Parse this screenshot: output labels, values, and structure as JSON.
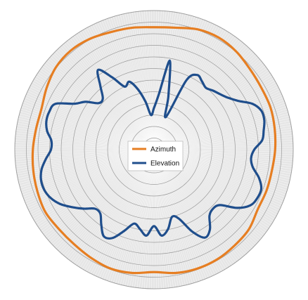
{
  "chart_data": {
    "type": "polar-line",
    "title": "",
    "radial_grid": true,
    "legend": {
      "position": "center",
      "entries": [
        {
          "name": "Azimuth",
          "color": "#e67e22"
        },
        {
          "name": "Elevation",
          "color": "#1f4e8c"
        }
      ]
    },
    "series": [
      {
        "name": "Azimuth",
        "color": "#e67e22",
        "angle_deg": [
          0,
          10,
          20,
          30,
          40,
          50,
          60,
          70,
          80,
          90,
          100,
          110,
          120,
          130,
          140,
          150,
          160,
          170,
          180,
          190,
          200,
          210,
          220,
          230,
          240,
          250,
          260,
          270,
          280,
          290,
          300,
          310,
          320,
          330,
          340,
          350
        ],
        "radius": [
          0.88,
          0.89,
          0.92,
          0.93,
          0.92,
          0.9,
          0.89,
          0.89,
          0.88,
          0.87,
          0.86,
          0.86,
          0.86,
          0.89,
          0.9,
          0.91,
          0.91,
          0.9,
          0.88,
          0.9,
          0.91,
          0.9,
          0.89,
          0.89,
          0.9,
          0.89,
          0.88,
          0.87,
          0.86,
          0.86,
          0.89,
          0.92,
          0.93,
          0.92,
          0.9,
          0.89
        ]
      },
      {
        "name": "Elevation",
        "color": "#1f4e8c",
        "angle_deg": [
          0,
          5,
          10,
          15,
          20,
          25,
          30,
          35,
          40,
          45,
          50,
          55,
          60,
          65,
          70,
          75,
          80,
          85,
          90,
          95,
          100,
          105,
          110,
          115,
          120,
          125,
          130,
          135,
          140,
          145,
          150,
          155,
          160,
          165,
          170,
          175,
          180,
          185,
          190,
          195,
          200,
          205,
          210,
          215,
          220,
          225,
          230,
          235,
          240,
          245,
          250,
          255,
          260,
          265,
          270,
          275,
          280,
          285,
          290,
          295,
          300,
          305,
          310,
          315,
          320,
          325,
          330,
          335,
          340,
          345,
          350,
          355
        ],
        "radius": [
          0.3,
          0.4,
          0.65,
          0.4,
          0.25,
          0.55,
          0.62,
          0.6,
          0.58,
          0.6,
          0.62,
          0.65,
          0.7,
          0.78,
          0.82,
          0.82,
          0.8,
          0.78,
          0.72,
          0.7,
          0.72,
          0.78,
          0.82,
          0.82,
          0.8,
          0.73,
          0.62,
          0.6,
          0.62,
          0.7,
          0.73,
          0.65,
          0.53,
          0.5,
          0.58,
          0.62,
          0.55,
          0.62,
          0.58,
          0.55,
          0.62,
          0.7,
          0.72,
          0.66,
          0.6,
          0.6,
          0.66,
          0.72,
          0.78,
          0.82,
          0.84,
          0.84,
          0.82,
          0.78,
          0.74,
          0.74,
          0.78,
          0.8,
          0.8,
          0.78,
          0.66,
          0.6,
          0.52,
          0.52,
          0.6,
          0.7,
          0.6,
          0.5,
          0.52,
          0.45,
          0.35,
          0.25
        ]
      }
    ]
  }
}
